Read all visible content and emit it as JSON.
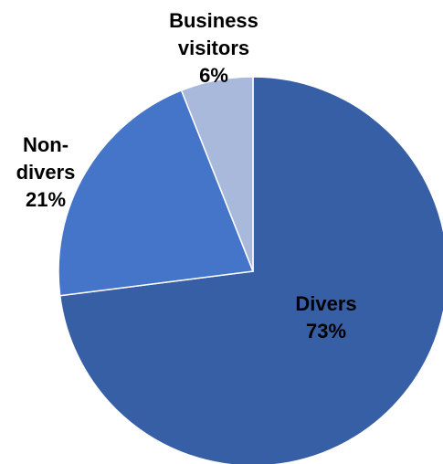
{
  "chart_data": {
    "type": "pie",
    "start": "top-clockwise",
    "slices": [
      {
        "name": "Divers",
        "value": 73,
        "label": "Divers",
        "pct": "73%",
        "color": "#365fa5",
        "label_color": "#000000"
      },
      {
        "name": "Non-divers",
        "value": 21,
        "label": "Non-divers",
        "pct": "21%",
        "color": "#4575c8",
        "label_color": "#000000"
      },
      {
        "name": "Business visitors",
        "value": 6,
        "label": "Business visitors",
        "pct": "6%",
        "color": "#a9b9dc",
        "label_color": "#000000"
      }
    ],
    "legend": "none"
  }
}
